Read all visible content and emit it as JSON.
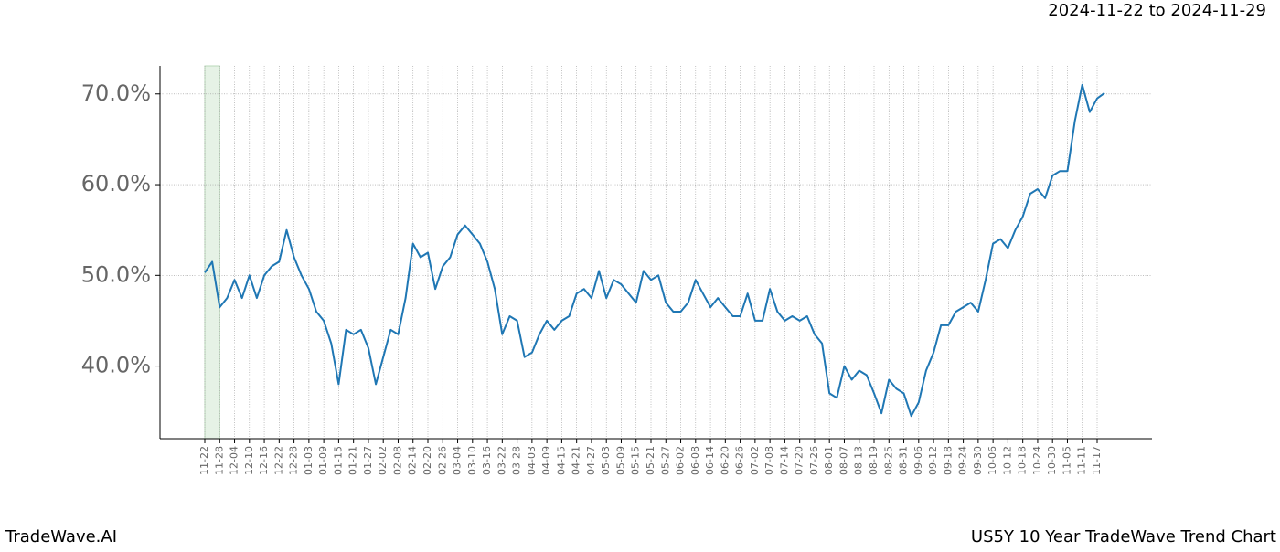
{
  "chart_data": {
    "type": "line",
    "title": "2024-11-22 to 2024-11-29",
    "footer_left": "TradeWave.AI",
    "footer_right": "US5Y 10 Year TradeWave Trend Chart",
    "categories": [
      "11-22",
      null,
      "11-28",
      null,
      "12-04",
      null,
      "12-10",
      null,
      "12-16",
      null,
      "12-22",
      null,
      "12-28",
      null,
      "01-03",
      null,
      "01-09",
      null,
      "01-15",
      null,
      "01-21",
      null,
      "01-27",
      null,
      "02-02",
      null,
      "02-08",
      null,
      "02-14",
      null,
      "02-20",
      null,
      "02-26",
      null,
      "03-04",
      null,
      "03-10",
      null,
      "03-16",
      null,
      "03-22",
      null,
      "03-28",
      null,
      "04-03",
      null,
      "04-09",
      null,
      "04-15",
      null,
      "04-21",
      null,
      "04-27",
      null,
      "05-03",
      null,
      "05-09",
      null,
      "05-15",
      null,
      "05-21",
      null,
      "05-27",
      null,
      "06-02",
      null,
      "06-08",
      null,
      "06-14",
      null,
      "06-20",
      null,
      "06-26",
      null,
      "07-02",
      null,
      "07-08",
      null,
      "07-14",
      null,
      "07-20",
      null,
      "07-26",
      null,
      "08-01",
      null,
      "08-07",
      null,
      "08-13",
      null,
      "08-19",
      null,
      "08-25",
      null,
      "08-31",
      null,
      "09-06",
      null,
      "09-12",
      null,
      "09-18",
      null,
      "09-24",
      null,
      "09-30",
      null,
      "10-06",
      null,
      "10-12",
      null,
      "10-18",
      null,
      "10-24",
      null,
      "10-30",
      null,
      "11-05",
      null,
      "11-11",
      null,
      "11-17",
      null
    ],
    "series": [
      {
        "color": "#1f77b4",
        "values": [
          50.3,
          51.5,
          46.5,
          47.5,
          49.5,
          47.5,
          50,
          47.5,
          50,
          51,
          51.5,
          55,
          52,
          50,
          48.5,
          46,
          45,
          42.5,
          38,
          44,
          43.5,
          44,
          42,
          38,
          41,
          44,
          43.5,
          47.5,
          53.5,
          52,
          52.5,
          48.5,
          51,
          52,
          54.5,
          55.5,
          54.5,
          53.5,
          51.5,
          48.5,
          43.5,
          45.5,
          45,
          41,
          41.5,
          43.5,
          45,
          44,
          45,
          45.5,
          48,
          48.5,
          47.5,
          50.5,
          47.5,
          49.5,
          49,
          48,
          47,
          50.5,
          49.5,
          50,
          47,
          46,
          46,
          47,
          49.5,
          48,
          46.5,
          47.5,
          46.5,
          45.5,
          45.5,
          48,
          45,
          45,
          48.5,
          46,
          45,
          45.5,
          45,
          45.5,
          43.5,
          42.5,
          37,
          36.5,
          40,
          38.5,
          39.5,
          39,
          37,
          34.8,
          38.5,
          37.5,
          37,
          34.5,
          36,
          39.5,
          41.5,
          44.5,
          44.5,
          46,
          46.5,
          47,
          46,
          49.5,
          53.5,
          54,
          53,
          55,
          56.5,
          59,
          59.5,
          58.5,
          61,
          61.5,
          61.5,
          67,
          71,
          68,
          69.5,
          70.1
        ]
      }
    ],
    "ylim": [
      32.0,
      73.1
    ],
    "yticks": [
      {
        "value": 40,
        "label": "40.0%"
      },
      {
        "value": 50,
        "label": "50.0%"
      },
      {
        "value": 60,
        "label": "60.0%"
      },
      {
        "value": 70,
        "label": "70.0%"
      }
    ],
    "grid": true
  }
}
